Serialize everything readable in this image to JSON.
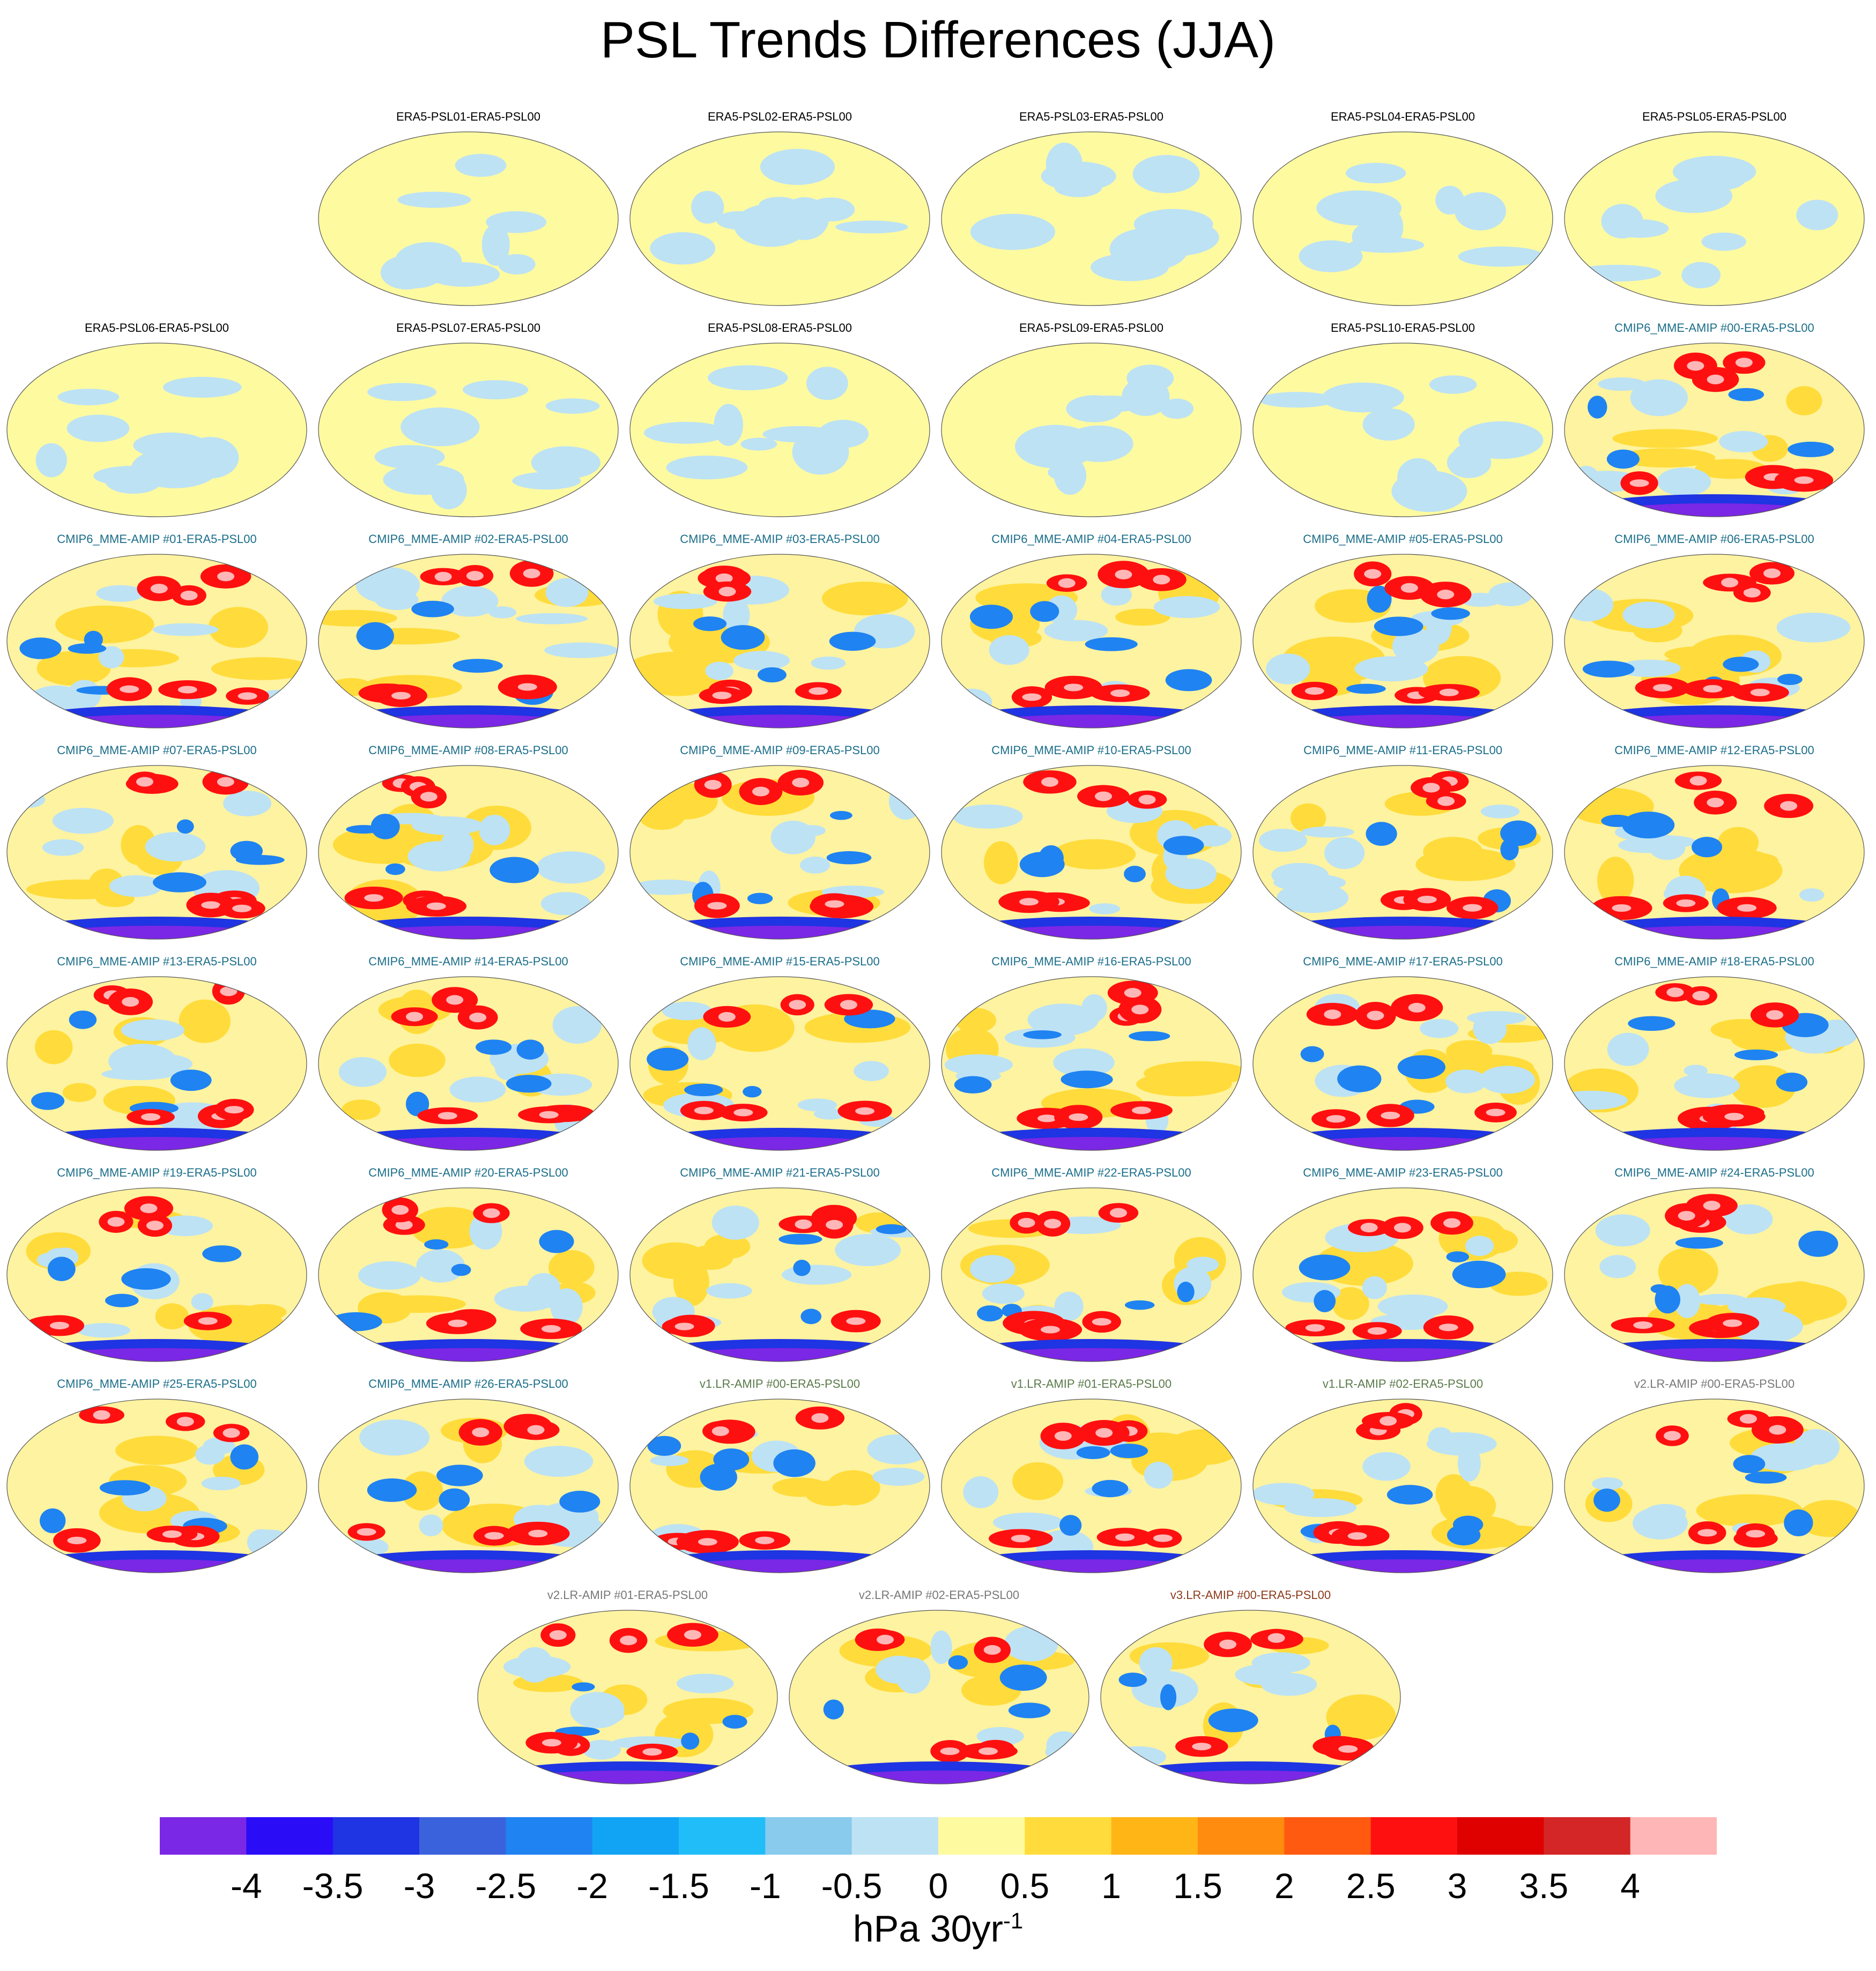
{
  "title": "PSL Trends Differences (JJA)",
  "colorbar": {
    "colors": [
      "#7b27e6",
      "#2a0cf7",
      "#1f34e2",
      "#3a62dc",
      "#1f83f2",
      "#12a4f4",
      "#21bdf8",
      "#88cbed",
      "#bde2f4",
      "#fefaa0",
      "#ffdc3b",
      "#ffb516",
      "#ff8c0e",
      "#ff5a10",
      "#ff1010",
      "#df0000",
      "#d42626",
      "#ffb6b6"
    ],
    "labels": [
      "-4",
      "-3.5",
      "-3",
      "-2.5",
      "-2",
      "-1.5",
      "-1",
      "-0.5",
      "0",
      "0.5",
      "1",
      "1.5",
      "2",
      "2.5",
      "3",
      "3.5",
      "4"
    ],
    "units_main": "hPa 30yr",
    "units_sup": "-1"
  },
  "chart_data": {
    "type": "heatmap",
    "title": "PSL Trends Differences (JJA)",
    "colorbar_levels": [
      -4,
      -3.5,
      -3,
      -2.5,
      -2,
      -1.5,
      -1,
      -0.5,
      0,
      0.5,
      1,
      1.5,
      2,
      2.5,
      3,
      3.5,
      4
    ],
    "units": "hPa 30yr-1",
    "panels": [
      {
        "title": "ERA5-PSL01-ERA5-PSL00",
        "group": "era5"
      },
      {
        "title": "ERA5-PSL02-ERA5-PSL00",
        "group": "era5"
      },
      {
        "title": "ERA5-PSL03-ERA5-PSL00",
        "group": "era5"
      },
      {
        "title": "ERA5-PSL04-ERA5-PSL00",
        "group": "era5"
      },
      {
        "title": "ERA5-PSL05-ERA5-PSL00",
        "group": "era5"
      },
      {
        "title": "ERA5-PSL06-ERA5-PSL00",
        "group": "era5"
      },
      {
        "title": "ERA5-PSL07-ERA5-PSL00",
        "group": "era5"
      },
      {
        "title": "ERA5-PSL08-ERA5-PSL00",
        "group": "era5"
      },
      {
        "title": "ERA5-PSL09-ERA5-PSL00",
        "group": "era5"
      },
      {
        "title": "ERA5-PSL10-ERA5-PSL00",
        "group": "era5"
      },
      {
        "title": "CMIP6_MME-AMIP  #00-ERA5-PSL00",
        "group": "cmip6"
      },
      {
        "title": "CMIP6_MME-AMIP  #01-ERA5-PSL00",
        "group": "cmip6"
      },
      {
        "title": "CMIP6_MME-AMIP  #02-ERA5-PSL00",
        "group": "cmip6"
      },
      {
        "title": "CMIP6_MME-AMIP  #03-ERA5-PSL00",
        "group": "cmip6"
      },
      {
        "title": "CMIP6_MME-AMIP  #04-ERA5-PSL00",
        "group": "cmip6"
      },
      {
        "title": "CMIP6_MME-AMIP  #05-ERA5-PSL00",
        "group": "cmip6"
      },
      {
        "title": "CMIP6_MME-AMIP  #06-ERA5-PSL00",
        "group": "cmip6"
      },
      {
        "title": "CMIP6_MME-AMIP  #07-ERA5-PSL00",
        "group": "cmip6"
      },
      {
        "title": "CMIP6_MME-AMIP  #08-ERA5-PSL00",
        "group": "cmip6"
      },
      {
        "title": "CMIP6_MME-AMIP  #09-ERA5-PSL00",
        "group": "cmip6"
      },
      {
        "title": "CMIP6_MME-AMIP  #10-ERA5-PSL00",
        "group": "cmip6"
      },
      {
        "title": "CMIP6_MME-AMIP  #11-ERA5-PSL00",
        "group": "cmip6"
      },
      {
        "title": "CMIP6_MME-AMIP  #12-ERA5-PSL00",
        "group": "cmip6"
      },
      {
        "title": "CMIP6_MME-AMIP  #13-ERA5-PSL00",
        "group": "cmip6"
      },
      {
        "title": "CMIP6_MME-AMIP  #14-ERA5-PSL00",
        "group": "cmip6"
      },
      {
        "title": "CMIP6_MME-AMIP  #15-ERA5-PSL00",
        "group": "cmip6"
      },
      {
        "title": "CMIP6_MME-AMIP  #16-ERA5-PSL00",
        "group": "cmip6"
      },
      {
        "title": "CMIP6_MME-AMIP  #17-ERA5-PSL00",
        "group": "cmip6"
      },
      {
        "title": "CMIP6_MME-AMIP  #18-ERA5-PSL00",
        "group": "cmip6"
      },
      {
        "title": "CMIP6_MME-AMIP  #19-ERA5-PSL00",
        "group": "cmip6"
      },
      {
        "title": "CMIP6_MME-AMIP  #20-ERA5-PSL00",
        "group": "cmip6"
      },
      {
        "title": "CMIP6_MME-AMIP  #21-ERA5-PSL00",
        "group": "cmip6"
      },
      {
        "title": "CMIP6_MME-AMIP  #22-ERA5-PSL00",
        "group": "cmip6"
      },
      {
        "title": "CMIP6_MME-AMIP  #23-ERA5-PSL00",
        "group": "cmip6"
      },
      {
        "title": "CMIP6_MME-AMIP  #24-ERA5-PSL00",
        "group": "cmip6"
      },
      {
        "title": "CMIP6_MME-AMIP  #25-ERA5-PSL00",
        "group": "cmip6"
      },
      {
        "title": "CMIP6_MME-AMIP  #26-ERA5-PSL00",
        "group": "cmip6"
      },
      {
        "title": "v1.LR-AMIP  #00-ERA5-PSL00",
        "group": "v1"
      },
      {
        "title": "v1.LR-AMIP  #01-ERA5-PSL00",
        "group": "v1"
      },
      {
        "title": "v1.LR-AMIP  #02-ERA5-PSL00",
        "group": "v1"
      },
      {
        "title": "v2.LR-AMIP  #00-ERA5-PSL00",
        "group": "v2"
      },
      {
        "title": "v2.LR-AMIP  #01-ERA5-PSL00",
        "group": "v2"
      },
      {
        "title": "v2.LR-AMIP  #02-ERA5-PSL00",
        "group": "v2"
      },
      {
        "title": "v3.LR-AMIP  #00-ERA5-PSL00",
        "group": "v3"
      }
    ]
  },
  "title_colors": {
    "era5": "#000000",
    "cmip6": "#1b6e8a",
    "v1": "#5a7a4a",
    "v2": "#777777",
    "v3": "#8b3a1a"
  }
}
